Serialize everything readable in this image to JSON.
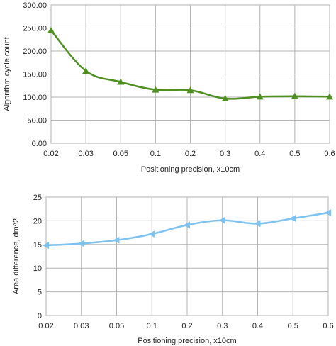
{
  "chart_data": [
    {
      "type": "line",
      "categories": [
        "0.02",
        "0.03",
        "0.05",
        "0.1",
        "0.2",
        "0.3",
        "0.4",
        "0.5",
        "0.6"
      ],
      "series": [
        {
          "values": [
            245,
            157,
            133,
            116,
            115,
            97,
            101,
            102,
            101
          ],
          "color": "#4e8f1f",
          "marker": "triangle-up"
        }
      ],
      "xlabel": "Positioning precision, x10cm",
      "ylabel": "Algorithm cycle count",
      "ylim": [
        0,
        300
      ],
      "yticks": [
        "0.00",
        "50.00",
        "100.00",
        "150.00",
        "200.00",
        "250.00",
        "300.00"
      ],
      "grid": true
    },
    {
      "type": "line",
      "categories": [
        "0.02",
        "0.03",
        "0.05",
        "0.1",
        "0.2",
        "0.3",
        "0.4",
        "0.5",
        "0.6"
      ],
      "series": [
        {
          "values": [
            14.8,
            15.2,
            15.9,
            17.2,
            19.1,
            20.1,
            19.4,
            20.5,
            21.7
          ],
          "color": "#7ec3ef",
          "marker": "triangle-left"
        }
      ],
      "xlabel": "Positioning precision, x10cm",
      "ylabel": "Area difference, dm^2",
      "ylim": [
        0,
        25
      ],
      "yticks": [
        "0",
        "5",
        "10",
        "15",
        "20",
        "25"
      ],
      "grid": true
    }
  ]
}
